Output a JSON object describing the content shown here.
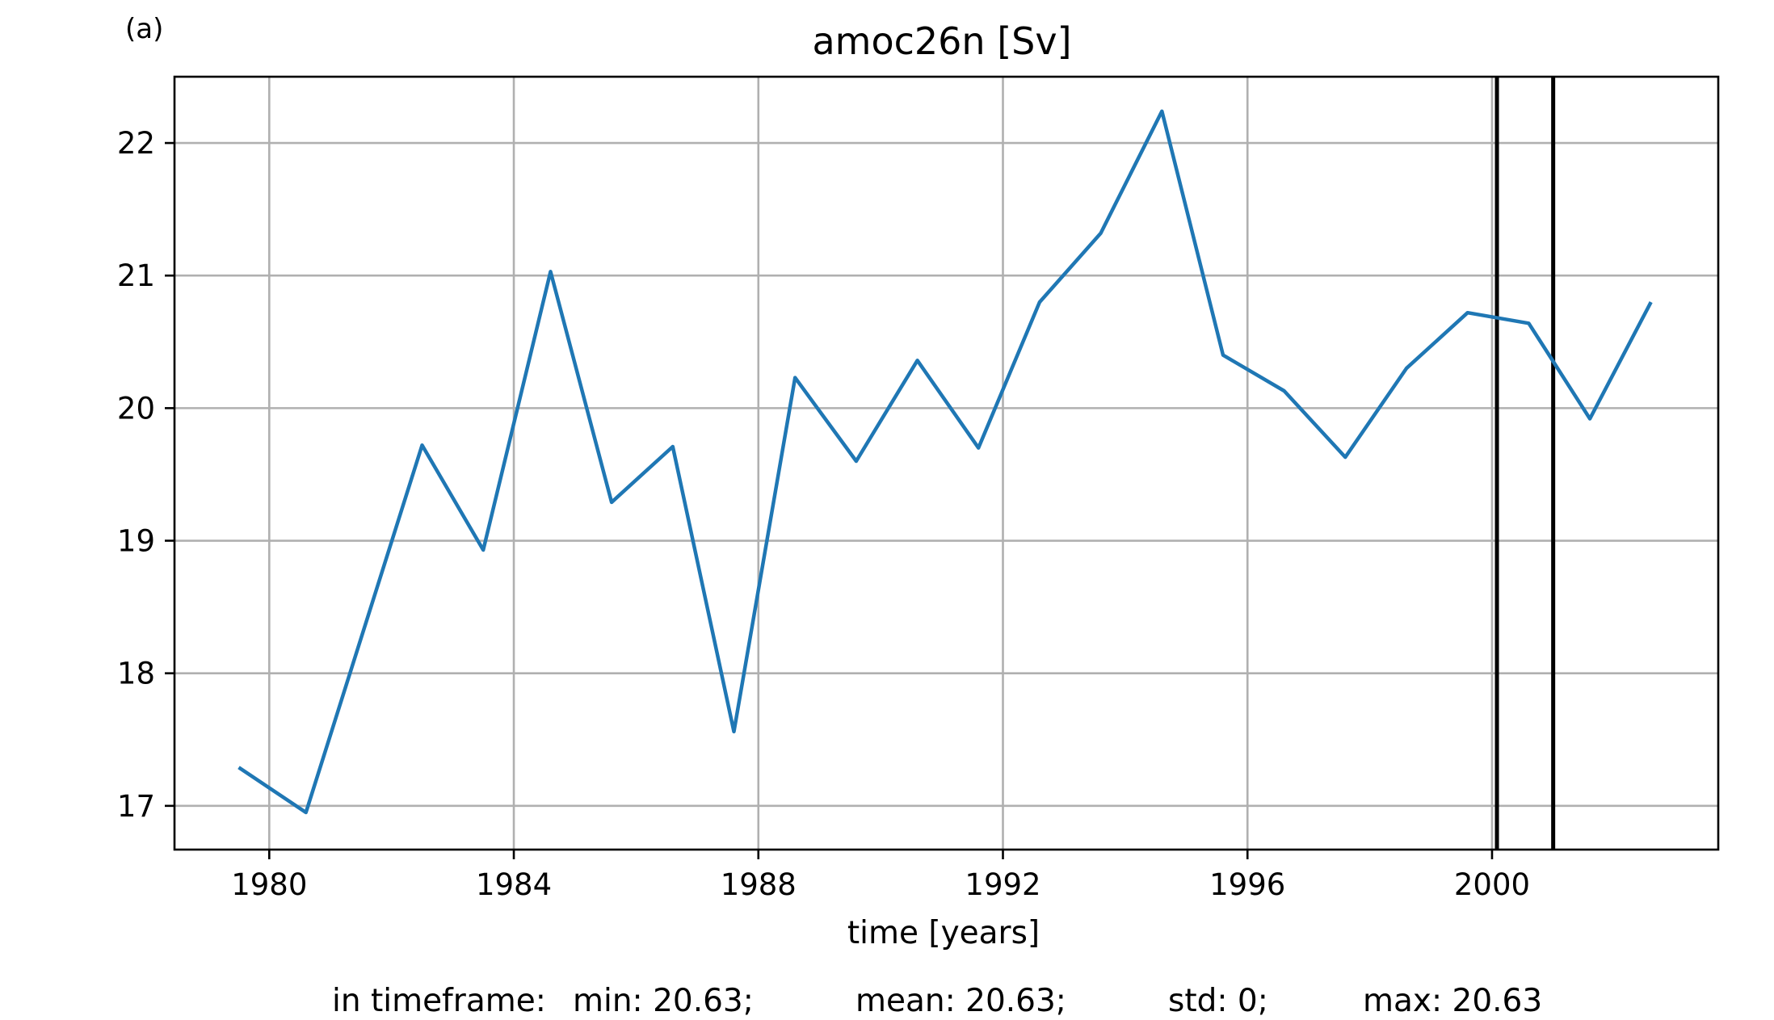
{
  "panel_label": "(a)",
  "stats": {
    "prefix": "in timeframe:",
    "min": "min: 20.63;",
    "mean": "mean: 20.63;",
    "std": "std: 0;",
    "max": "max: 20.63"
  },
  "chart_data": {
    "type": "line",
    "title": "amoc26n [Sv]",
    "xlabel": "time [years]",
    "ylabel": "",
    "xlim": [
      1978.45,
      2003.7
    ],
    "ylim": [
      16.67,
      22.5
    ],
    "xticks": [
      1980,
      1984,
      1988,
      1992,
      1996,
      2000
    ],
    "yticks": [
      17,
      18,
      19,
      20,
      21,
      22
    ],
    "grid": true,
    "vlines": [
      2000.08,
      2001.0
    ],
    "vline_color": "#000000",
    "series": [
      {
        "color": "#1f77b4",
        "x": [
          1979.5,
          1980.6,
          1982.5,
          1983.5,
          1984.6,
          1985.6,
          1986.6,
          1987.6,
          1988.6,
          1989.6,
          1990.6,
          1991.6,
          1992.6,
          1993.6,
          1994.6,
          1995.6,
          1996.6,
          1997.6,
          1998.6,
          1999.6,
          2000.6,
          2001.6,
          2002.6
        ],
        "y": [
          17.29,
          16.95,
          19.72,
          18.93,
          21.03,
          19.29,
          19.71,
          17.56,
          20.23,
          19.6,
          20.36,
          19.7,
          20.8,
          21.32,
          22.24,
          20.4,
          20.13,
          19.63,
          20.3,
          20.72,
          20.64,
          19.92,
          20.8
        ]
      }
    ]
  }
}
